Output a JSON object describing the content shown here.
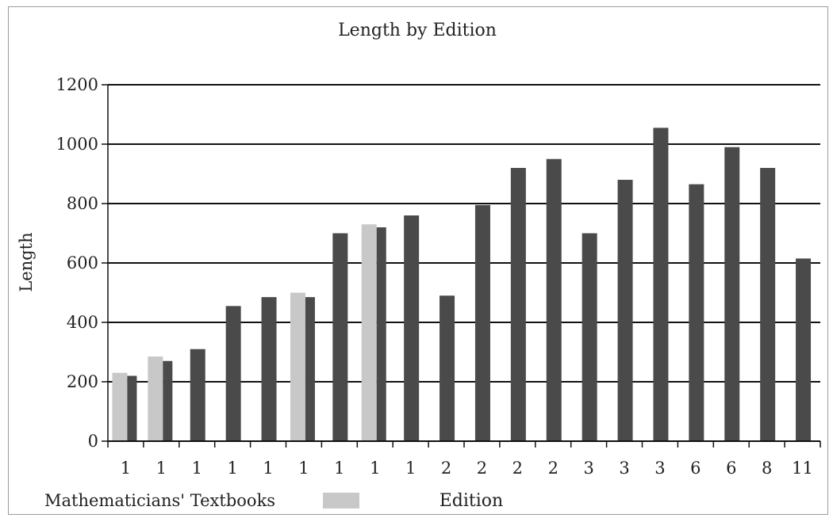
{
  "chart_data": {
    "type": "bar",
    "title": "Length by Edition",
    "xlabel": "Edition",
    "ylabel": "Length",
    "ylim": [
      0,
      1200
    ],
    "yticks": [
      0,
      200,
      400,
      600,
      800,
      1000,
      1200
    ],
    "grid": true,
    "categories": [
      "1",
      "1",
      "1",
      "1",
      "1",
      "1",
      "1",
      "1",
      "1",
      "2",
      "2",
      "2",
      "2",
      "3",
      "3",
      "3",
      "6",
      "6",
      "8",
      "11"
    ],
    "series": [
      {
        "name": "Mathematicians' Textbooks",
        "color": "#c8c8c8",
        "values": [
          230,
          285,
          null,
          null,
          null,
          500,
          null,
          730,
          null,
          null,
          null,
          null,
          null,
          null,
          null,
          null,
          null,
          null,
          null,
          null
        ]
      },
      {
        "name": "",
        "color": "#4a4a4a",
        "values": [
          220,
          270,
          310,
          455,
          485,
          485,
          700,
          720,
          760,
          490,
          795,
          920,
          950,
          700,
          880,
          1055,
          865,
          990,
          920,
          615
        ]
      }
    ],
    "legend": {
      "label": "Mathematicians' Textbooks",
      "placement": "bottom-left"
    }
  }
}
